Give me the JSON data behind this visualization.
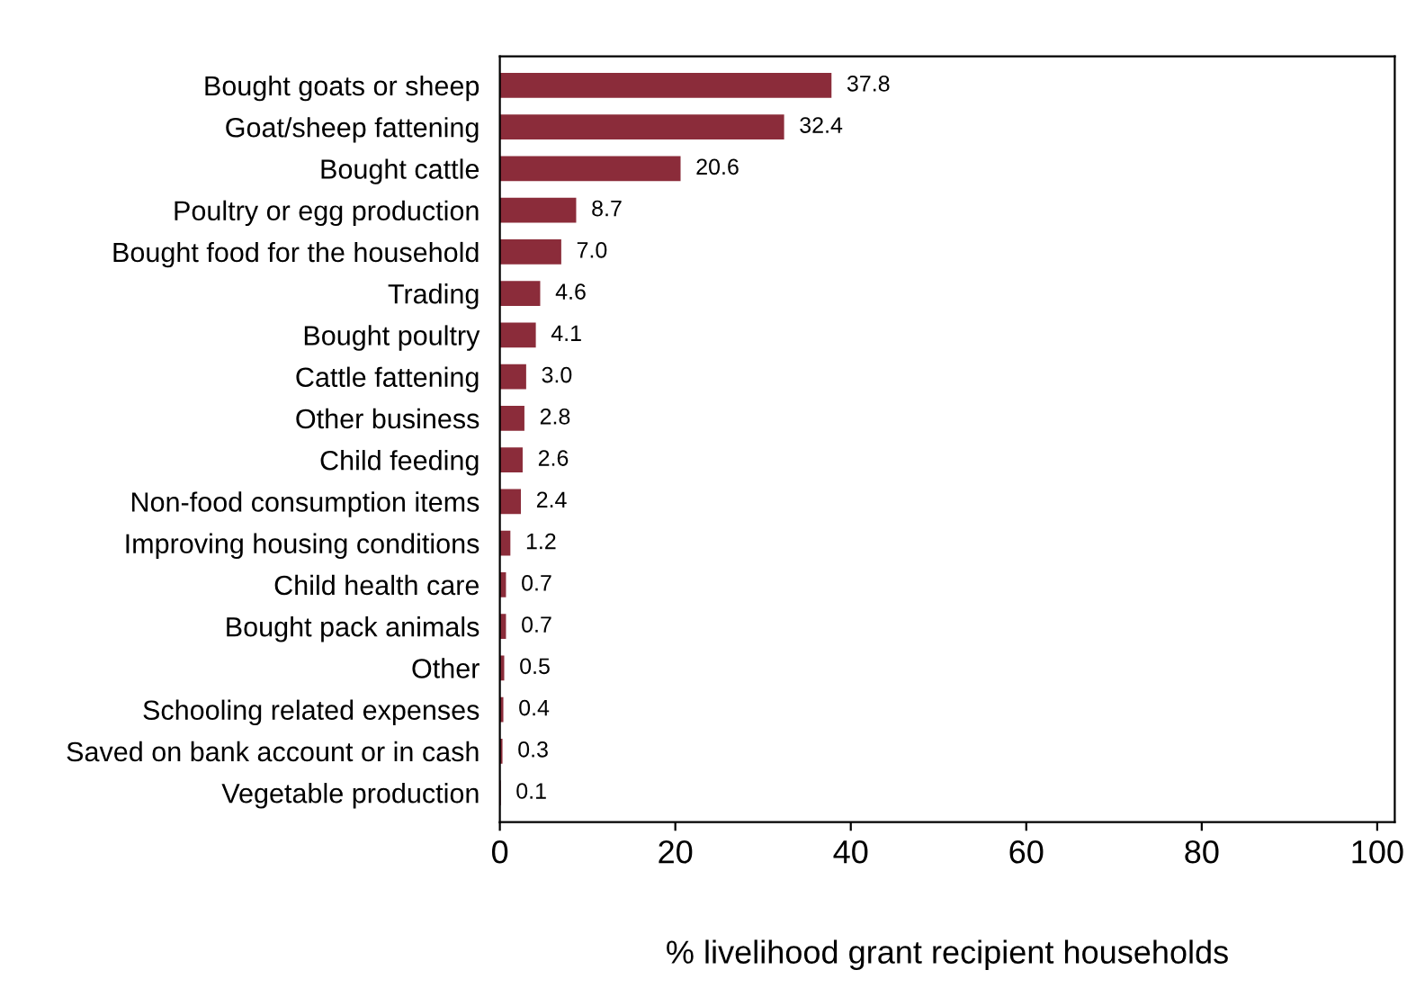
{
  "chart_data": {
    "type": "bar",
    "orientation": "horizontal",
    "xlabel": "% livelihood grant recipient households",
    "categories": [
      "Bought goats or sheep",
      "Goat/sheep fattening",
      "Bought cattle",
      "Poultry or egg production",
      "Bought food for the household",
      "Trading",
      "Bought poultry",
      "Cattle fattening",
      "Other business",
      "Child feeding",
      "Non-food consumption items",
      "Improving housing conditions",
      "Child health care",
      "Bought pack animals",
      "Other",
      "Schooling related expenses",
      "Saved on bank account or in cash",
      "Vegetable production"
    ],
    "values": [
      37.8,
      32.4,
      20.6,
      8.7,
      7.0,
      4.6,
      4.1,
      3.0,
      2.8,
      2.6,
      2.4,
      1.2,
      0.7,
      0.7,
      0.5,
      0.4,
      0.3,
      0.1
    ],
    "value_labels": [
      "37.8",
      "32.4",
      "20.6",
      "8.7",
      "7.0",
      "4.6",
      "4.1",
      "3.0",
      "2.8",
      "2.6",
      "2.4",
      "1.2",
      "0.7",
      "0.7",
      "0.5",
      "0.4",
      "0.3",
      "0.1"
    ],
    "color": "#8b2c3a",
    "xlim": [
      0,
      102
    ],
    "xticks": [
      0,
      20,
      40,
      60,
      80,
      100
    ],
    "grid": false,
    "legend": false
  }
}
